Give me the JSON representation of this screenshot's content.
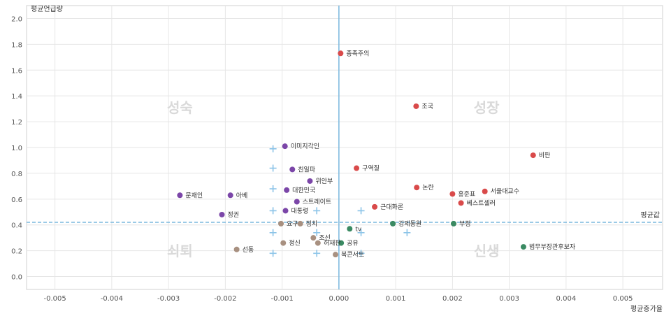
{
  "chart_data": {
    "type": "scatter",
    "xlabel": "평균증가율",
    "ylabel": "평균언급량",
    "xlim": [
      -0.0055,
      0.0057
    ],
    "ylim": [
      -0.1,
      2.1
    ],
    "x_ticks": [
      -0.005,
      -0.004,
      -0.003,
      -0.002,
      -0.001,
      0.0,
      0.001,
      0.002,
      0.003,
      0.004,
      0.005
    ],
    "x_tick_labels": [
      "-0.005",
      "-0.004",
      "-0.003",
      "-0.002",
      "-0.001",
      "0.000",
      "0.001",
      "0.002",
      "0.003",
      "0.004",
      "0.005"
    ],
    "y_ticks": [
      0.0,
      0.2,
      0.4,
      0.6,
      0.8,
      1.0,
      1.2,
      1.4,
      1.6,
      1.8,
      2.0
    ],
    "y_tick_labels": [
      "0.0",
      "0.2",
      "0.4",
      "0.6",
      "0.8",
      "1.0",
      "1.2",
      "1.4",
      "1.6",
      "1.8",
      "2.0"
    ],
    "grid": true,
    "mean_line": {
      "label": "평균값",
      "x": 0.0,
      "y": 0.42
    },
    "quadrants": {
      "top_left": "성숙",
      "top_right": "성장",
      "bottom_left": "쇠퇴",
      "bottom_right": "신생"
    },
    "colors": {
      "성장": "#d94a4a",
      "성숙": "#7b46a8",
      "신생": "#3a8a62",
      "쇠퇴": "#a89080",
      "marker": "#8cc4e8",
      "mean_line": "#7ab8de"
    },
    "points": [
      {
        "label": "종족주의",
        "x": 3e-05,
        "y": 1.73,
        "group": "성장"
      },
      {
        "label": "조국",
        "x": 0.00136,
        "y": 1.32,
        "group": "성장"
      },
      {
        "label": "비판",
        "x": 0.00342,
        "y": 0.94,
        "group": "성장"
      },
      {
        "label": "구역질",
        "x": 0.00031,
        "y": 0.84,
        "group": "성장"
      },
      {
        "label": "논란",
        "x": 0.00137,
        "y": 0.69,
        "group": "성장"
      },
      {
        "label": "서울대교수",
        "x": 0.00257,
        "y": 0.66,
        "group": "성장"
      },
      {
        "label": "홍준표",
        "x": 0.002,
        "y": 0.64,
        "group": "성장"
      },
      {
        "label": "베스트셀러",
        "x": 0.00215,
        "y": 0.57,
        "group": "성장"
      },
      {
        "label": "근대화론",
        "x": 0.00063,
        "y": 0.54,
        "group": "성장"
      },
      {
        "label": "이미지각인",
        "x": -0.00095,
        "y": 1.01,
        "group": "성숙"
      },
      {
        "label": "친일파",
        "x": -0.00082,
        "y": 0.83,
        "group": "성숙"
      },
      {
        "label": "위안부",
        "x": -0.00051,
        "y": 0.74,
        "group": "성숙"
      },
      {
        "label": "대한민국",
        "x": -0.00092,
        "y": 0.67,
        "group": "성숙"
      },
      {
        "label": "문재인",
        "x": -0.0028,
        "y": 0.63,
        "group": "성숙"
      },
      {
        "label": "아베",
        "x": -0.00191,
        "y": 0.63,
        "group": "성숙"
      },
      {
        "label": "스트레이트",
        "x": -0.00074,
        "y": 0.58,
        "group": "성숙"
      },
      {
        "label": "대통령",
        "x": -0.00094,
        "y": 0.51,
        "group": "성숙"
      },
      {
        "label": "정권",
        "x": -0.00206,
        "y": 0.48,
        "group": "성숙"
      },
      {
        "label": "강제동원",
        "x": 0.00095,
        "y": 0.41,
        "group": "신생"
      },
      {
        "label": "부정",
        "x": 0.00202,
        "y": 0.41,
        "group": "신생"
      },
      {
        "label": "tv",
        "x": 0.00019,
        "y": 0.37,
        "group": "신생"
      },
      {
        "label": "공유",
        "x": 4e-05,
        "y": 0.26,
        "group": "신생"
      },
      {
        "label": "법무부장관후보자",
        "x": 0.00325,
        "y": 0.23,
        "group": "신생"
      },
      {
        "label": "요구",
        "x": -0.00102,
        "y": 0.41,
        "group": "쇠퇴"
      },
      {
        "label": "정치",
        "x": -0.00068,
        "y": 0.41,
        "group": "쇠퇴"
      },
      {
        "label": "조선",
        "x": -0.00045,
        "y": 0.3,
        "group": "쇠퇴"
      },
      {
        "label": "정신",
        "x": -0.00098,
        "y": 0.26,
        "group": "쇠퇴"
      },
      {
        "label": "허재판",
        "x": -0.00037,
        "y": 0.26,
        "group": "쇠퇴"
      },
      {
        "label": "선동",
        "x": -0.0018,
        "y": 0.21,
        "group": "쇠퇴"
      },
      {
        "label": "북콘서트",
        "x": -6e-05,
        "y": 0.17,
        "group": "쇠퇴"
      }
    ],
    "markers": [
      [
        -0.00116,
        0.99
      ],
      [
        -0.00116,
        0.84
      ],
      [
        -0.00116,
        0.68
      ],
      [
        -0.00116,
        0.51
      ],
      [
        -0.00116,
        0.34
      ],
      [
        -0.00116,
        0.18
      ],
      [
        -0.00039,
        0.51
      ],
      [
        -0.00039,
        0.34
      ],
      [
        -0.00039,
        0.18
      ],
      [
        0.00039,
        0.51
      ],
      [
        0.00039,
        0.34
      ],
      [
        0.00039,
        0.18
      ],
      [
        0.0012,
        0.34
      ]
    ]
  }
}
